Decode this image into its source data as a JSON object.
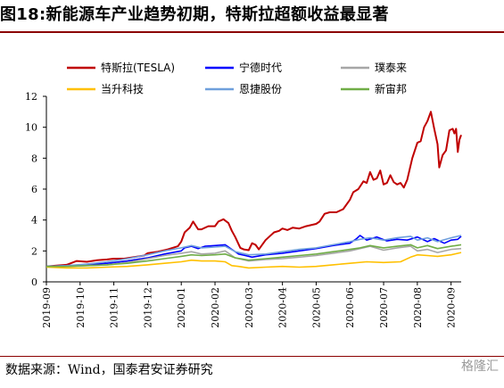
{
  "figure": {
    "title": "图18:新能源车产业趋势初期，特斯拉超额收益最显著",
    "source": "数据来源：Wind，国泰君安证券研究",
    "watermark": "格隆汇"
  },
  "chart_data": {
    "type": "line",
    "x_tick_labels": [
      "2019-09",
      "2019-10",
      "2019-11",
      "2019-12",
      "2020-01",
      "2020-02",
      "2020-03",
      "2020-04",
      "2020-05",
      "2020-06",
      "2020-07",
      "2020-08",
      "2020-09"
    ],
    "xlim": [
      0,
      12.3
    ],
    "ylim": [
      0,
      12
    ],
    "y_ticks": [
      0,
      2,
      4,
      6,
      8,
      10,
      12
    ],
    "grid": false,
    "legend_position": "top",
    "series": [
      {
        "name": "特斯拉(TESLA)",
        "color": "#c00000",
        "points": [
          [
            0,
            1.0
          ],
          [
            0.3,
            1.05
          ],
          [
            0.6,
            1.1
          ],
          [
            0.9,
            1.35
          ],
          [
            1.2,
            1.3
          ],
          [
            1.5,
            1.4
          ],
          [
            1.8,
            1.45
          ],
          [
            2.0,
            1.5
          ],
          [
            2.3,
            1.5
          ],
          [
            2.6,
            1.6
          ],
          [
            2.9,
            1.7
          ],
          [
            3.0,
            1.85
          ],
          [
            3.3,
            1.95
          ],
          [
            3.6,
            2.1
          ],
          [
            3.9,
            2.3
          ],
          [
            4.0,
            2.6
          ],
          [
            4.1,
            3.2
          ],
          [
            4.25,
            3.5
          ],
          [
            4.35,
            3.9
          ],
          [
            4.5,
            3.4
          ],
          [
            4.6,
            3.4
          ],
          [
            4.8,
            3.6
          ],
          [
            5.0,
            3.6
          ],
          [
            5.1,
            3.9
          ],
          [
            5.25,
            4.05
          ],
          [
            5.4,
            3.8
          ],
          [
            5.5,
            3.3
          ],
          [
            5.6,
            2.9
          ],
          [
            5.75,
            2.2
          ],
          [
            5.85,
            2.1
          ],
          [
            6.0,
            2.05
          ],
          [
            6.1,
            2.5
          ],
          [
            6.2,
            2.4
          ],
          [
            6.3,
            2.1
          ],
          [
            6.5,
            2.7
          ],
          [
            6.6,
            2.9
          ],
          [
            6.75,
            3.2
          ],
          [
            6.9,
            3.3
          ],
          [
            7.0,
            3.45
          ],
          [
            7.15,
            3.35
          ],
          [
            7.3,
            3.5
          ],
          [
            7.5,
            3.45
          ],
          [
            7.7,
            3.6
          ],
          [
            7.9,
            3.7
          ],
          [
            8.0,
            3.75
          ],
          [
            8.1,
            3.9
          ],
          [
            8.25,
            4.4
          ],
          [
            8.4,
            4.5
          ],
          [
            8.6,
            4.5
          ],
          [
            8.8,
            4.7
          ],
          [
            9.0,
            5.3
          ],
          [
            9.1,
            5.8
          ],
          [
            9.25,
            6.0
          ],
          [
            9.4,
            6.5
          ],
          [
            9.5,
            6.4
          ],
          [
            9.6,
            7.1
          ],
          [
            9.7,
            6.6
          ],
          [
            9.8,
            6.7
          ],
          [
            9.9,
            7.2
          ],
          [
            10.0,
            6.3
          ],
          [
            10.1,
            6.4
          ],
          [
            10.2,
            6.9
          ],
          [
            10.3,
            6.45
          ],
          [
            10.4,
            6.3
          ],
          [
            10.5,
            6.4
          ],
          [
            10.6,
            6.1
          ],
          [
            10.7,
            6.6
          ],
          [
            10.85,
            8.0
          ],
          [
            11.0,
            9.0
          ],
          [
            11.1,
            9.1
          ],
          [
            11.2,
            10.0
          ],
          [
            11.3,
            10.4
          ],
          [
            11.4,
            11.0
          ],
          [
            11.5,
            9.9
          ],
          [
            11.6,
            8.9
          ],
          [
            11.65,
            7.4
          ],
          [
            11.75,
            8.2
          ],
          [
            11.85,
            8.5
          ],
          [
            11.95,
            9.8
          ],
          [
            12.05,
            9.9
          ],
          [
            12.1,
            9.6
          ],
          [
            12.15,
            9.9
          ],
          [
            12.2,
            8.4
          ],
          [
            12.25,
            9.2
          ],
          [
            12.3,
            9.5
          ]
        ]
      },
      {
        "name": "宁德时代",
        "color": "#0000ff",
        "points": [
          [
            0,
            1.0
          ],
          [
            0.6,
            1.05
          ],
          [
            1.2,
            1.1
          ],
          [
            1.8,
            1.2
          ],
          [
            2.4,
            1.35
          ],
          [
            3.0,
            1.55
          ],
          [
            3.5,
            1.8
          ],
          [
            4.0,
            2.0
          ],
          [
            4.1,
            2.2
          ],
          [
            4.3,
            2.3
          ],
          [
            4.5,
            2.15
          ],
          [
            4.7,
            2.3
          ],
          [
            5.0,
            2.35
          ],
          [
            5.3,
            2.4
          ],
          [
            5.5,
            2.1
          ],
          [
            5.7,
            1.8
          ],
          [
            5.9,
            1.7
          ],
          [
            6.1,
            1.6
          ],
          [
            6.5,
            1.75
          ],
          [
            7.0,
            1.85
          ],
          [
            7.5,
            2.0
          ],
          [
            8.0,
            2.15
          ],
          [
            8.5,
            2.35
          ],
          [
            9.0,
            2.5
          ],
          [
            9.2,
            2.8
          ],
          [
            9.3,
            3.0
          ],
          [
            9.5,
            2.7
          ],
          [
            9.8,
            2.9
          ],
          [
            10.1,
            2.65
          ],
          [
            10.4,
            2.75
          ],
          [
            10.7,
            2.7
          ],
          [
            11.0,
            2.9
          ],
          [
            11.3,
            2.6
          ],
          [
            11.5,
            2.8
          ],
          [
            11.8,
            2.5
          ],
          [
            12.0,
            2.7
          ],
          [
            12.2,
            2.75
          ],
          [
            12.3,
            2.95
          ]
        ]
      },
      {
        "name": "璞泰来",
        "color": "#a6a6a6",
        "points": [
          [
            0,
            1.0
          ],
          [
            0.6,
            1.0
          ],
          [
            1.2,
            1.05
          ],
          [
            1.8,
            1.1
          ],
          [
            2.4,
            1.25
          ],
          [
            3.0,
            1.5
          ],
          [
            3.5,
            1.7
          ],
          [
            4.0,
            1.85
          ],
          [
            4.3,
            1.95
          ],
          [
            4.6,
            1.8
          ],
          [
            5.0,
            1.85
          ],
          [
            5.3,
            2.0
          ],
          [
            5.6,
            1.55
          ],
          [
            6.0,
            1.35
          ],
          [
            6.5,
            1.45
          ],
          [
            7.0,
            1.5
          ],
          [
            7.5,
            1.6
          ],
          [
            8.0,
            1.7
          ],
          [
            8.5,
            1.85
          ],
          [
            9.0,
            2.0
          ],
          [
            9.3,
            2.15
          ],
          [
            9.6,
            2.3
          ],
          [
            10.0,
            2.05
          ],
          [
            10.4,
            2.2
          ],
          [
            10.8,
            2.3
          ],
          [
            11.0,
            2.0
          ],
          [
            11.3,
            2.1
          ],
          [
            11.6,
            1.9
          ],
          [
            12.0,
            2.1
          ],
          [
            12.3,
            2.15
          ]
        ]
      },
      {
        "name": "当升科技",
        "color": "#ffc000",
        "points": [
          [
            0,
            0.95
          ],
          [
            0.6,
            0.9
          ],
          [
            1.2,
            0.9
          ],
          [
            1.8,
            0.95
          ],
          [
            2.4,
            1.0
          ],
          [
            3.0,
            1.1
          ],
          [
            3.5,
            1.2
          ],
          [
            4.0,
            1.3
          ],
          [
            4.3,
            1.4
          ],
          [
            4.6,
            1.35
          ],
          [
            5.0,
            1.35
          ],
          [
            5.3,
            1.3
          ],
          [
            5.5,
            1.05
          ],
          [
            5.7,
            1.0
          ],
          [
            6.0,
            0.9
          ],
          [
            6.5,
            0.95
          ],
          [
            7.0,
            1.0
          ],
          [
            7.5,
            0.95
          ],
          [
            8.0,
            1.0
          ],
          [
            8.5,
            1.1
          ],
          [
            9.0,
            1.2
          ],
          [
            9.5,
            1.3
          ],
          [
            10.0,
            1.25
          ],
          [
            10.5,
            1.3
          ],
          [
            10.8,
            1.6
          ],
          [
            11.0,
            1.75
          ],
          [
            11.3,
            1.7
          ],
          [
            11.6,
            1.65
          ],
          [
            12.0,
            1.75
          ],
          [
            12.3,
            1.9
          ]
        ]
      },
      {
        "name": "恩捷股份",
        "color": "#6f9fdc",
        "points": [
          [
            0,
            1.0
          ],
          [
            0.6,
            1.05
          ],
          [
            1.2,
            1.15
          ],
          [
            1.8,
            1.3
          ],
          [
            2.4,
            1.5
          ],
          [
            3.0,
            1.75
          ],
          [
            3.5,
            2.0
          ],
          [
            4.0,
            2.2
          ],
          [
            4.3,
            2.35
          ],
          [
            4.6,
            2.2
          ],
          [
            5.0,
            2.25
          ],
          [
            5.3,
            2.3
          ],
          [
            5.6,
            1.95
          ],
          [
            6.0,
            1.75
          ],
          [
            6.5,
            1.8
          ],
          [
            7.0,
            1.95
          ],
          [
            7.5,
            2.1
          ],
          [
            8.0,
            2.2
          ],
          [
            8.5,
            2.4
          ],
          [
            9.0,
            2.6
          ],
          [
            9.3,
            2.75
          ],
          [
            9.6,
            2.85
          ],
          [
            10.0,
            2.7
          ],
          [
            10.4,
            2.85
          ],
          [
            10.8,
            2.95
          ],
          [
            11.0,
            2.7
          ],
          [
            11.3,
            2.85
          ],
          [
            11.6,
            2.6
          ],
          [
            12.0,
            2.85
          ],
          [
            12.3,
            3.0
          ]
        ]
      },
      {
        "name": "新宙邦",
        "color": "#70ad47",
        "points": [
          [
            0,
            1.0
          ],
          [
            0.6,
            1.0
          ],
          [
            1.2,
            1.05
          ],
          [
            1.8,
            1.1
          ],
          [
            2.4,
            1.2
          ],
          [
            3.0,
            1.35
          ],
          [
            3.5,
            1.5
          ],
          [
            4.0,
            1.65
          ],
          [
            4.3,
            1.75
          ],
          [
            4.6,
            1.7
          ],
          [
            5.0,
            1.75
          ],
          [
            5.3,
            1.8
          ],
          [
            5.6,
            1.55
          ],
          [
            6.0,
            1.4
          ],
          [
            6.5,
            1.5
          ],
          [
            7.0,
            1.6
          ],
          [
            7.5,
            1.7
          ],
          [
            8.0,
            1.8
          ],
          [
            8.5,
            1.95
          ],
          [
            9.0,
            2.1
          ],
          [
            9.3,
            2.2
          ],
          [
            9.6,
            2.35
          ],
          [
            10.0,
            2.2
          ],
          [
            10.4,
            2.3
          ],
          [
            10.8,
            2.4
          ],
          [
            11.0,
            2.2
          ],
          [
            11.3,
            2.35
          ],
          [
            11.6,
            2.15
          ],
          [
            12.0,
            2.3
          ],
          [
            12.3,
            2.4
          ]
        ]
      }
    ]
  }
}
